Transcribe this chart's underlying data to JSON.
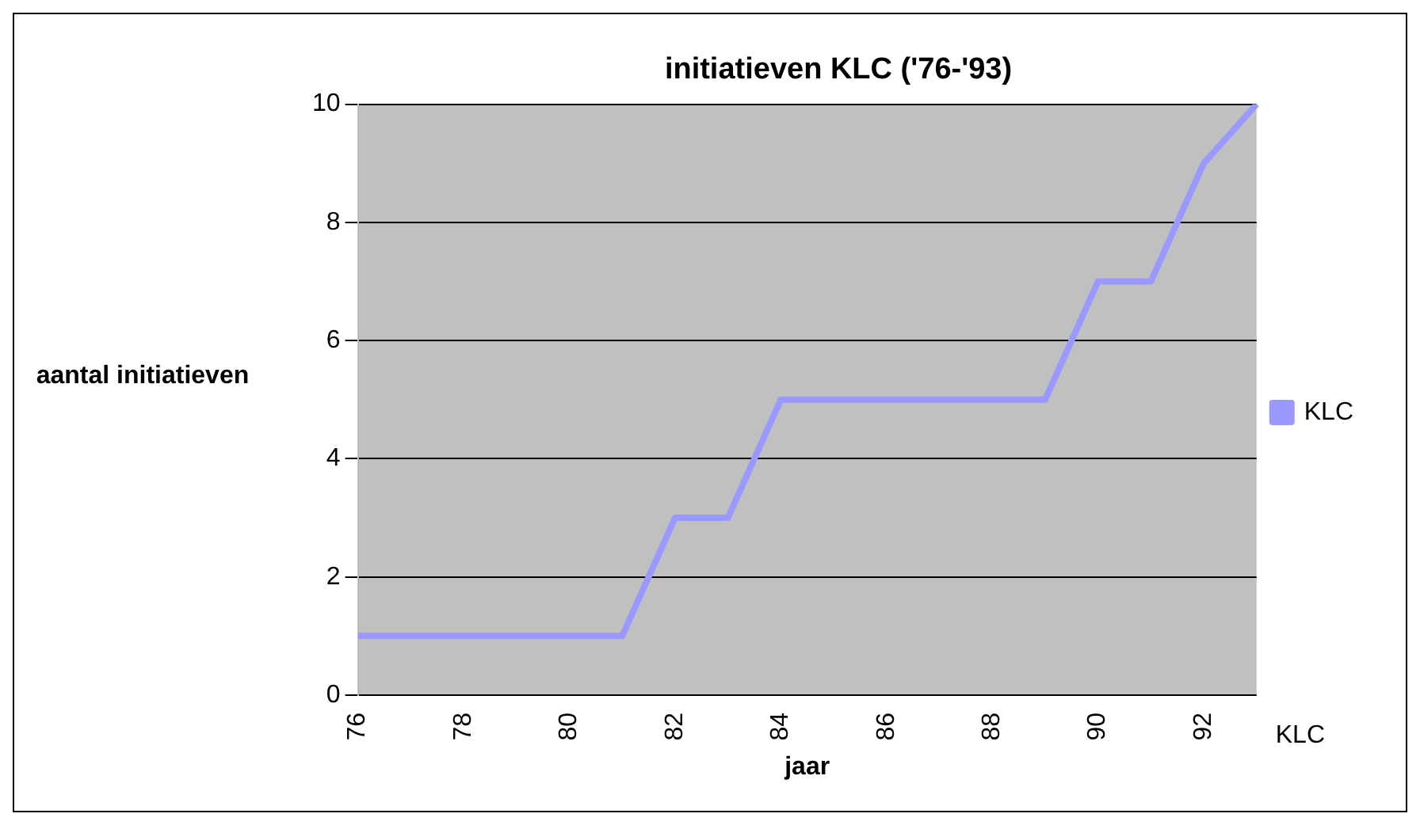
{
  "chart_data": {
    "type": "line",
    "title": "initiatieven KLC ('76-'93)",
    "xlabel": "jaar",
    "ylabel": "aantal initiatieven",
    "categories": [
      "76",
      null,
      "78",
      null,
      "80",
      null,
      "82",
      null,
      "84",
      null,
      "86",
      null,
      "88",
      null,
      "90",
      null,
      "92",
      null
    ],
    "series": [
      {
        "name": "KLC",
        "color": "#9999ff",
        "values": [
          1,
          1,
          1,
          1,
          1,
          1,
          3,
          3,
          5,
          5,
          5,
          5,
          5,
          5,
          7,
          7,
          9,
          10
        ]
      }
    ],
    "ylim": [
      0,
      10
    ],
    "yticks": [
      0,
      2,
      4,
      6,
      8,
      10
    ],
    "grid": "y",
    "legend": "right",
    "marker": "none",
    "line_style": "solid",
    "annotations": [
      "KLC"
    ]
  }
}
